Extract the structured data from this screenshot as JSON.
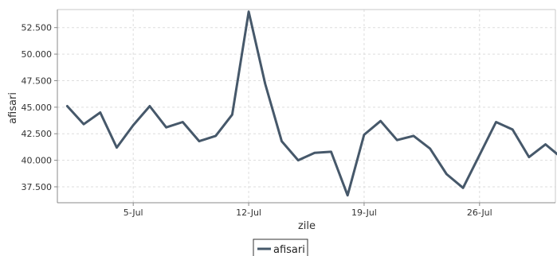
{
  "chart_data": {
    "type": "line",
    "title": "",
    "xlabel": "zile",
    "ylabel": "afisari",
    "x_start": "2013-07-01",
    "x_tick_labels": [
      "5-Jul",
      "12-Jul",
      "19-Jul",
      "26-Jul"
    ],
    "x_tick_days": [
      4,
      11,
      18,
      25
    ],
    "x_range_days": [
      -0.6,
      29.6
    ],
    "y_ticks": [
      37500,
      40000,
      42500,
      45000,
      47500,
      50000,
      52500
    ],
    "y_tick_labels": [
      "37.500",
      "40.000",
      "42.500",
      "45.000",
      "47.500",
      "50.000",
      "52.500"
    ],
    "ylim": [
      36000,
      54200
    ],
    "grid": true,
    "legend_position": "bottom-center",
    "series": [
      {
        "name": "afisari",
        "color": "#46586a",
        "x": [
          "1-Jul",
          "2-Jul",
          "3-Jul",
          "4-Jul",
          "5-Jul",
          "6-Jul",
          "7-Jul",
          "8-Jul",
          "9-Jul",
          "10-Jul",
          "11-Jul",
          "12-Jul",
          "13-Jul",
          "14-Jul",
          "15-Jul",
          "16-Jul",
          "17-Jul",
          "18-Jul",
          "19-Jul",
          "20-Jul",
          "21-Jul",
          "22-Jul",
          "23-Jul",
          "24-Jul",
          "25-Jul",
          "26-Jul",
          "27-Jul",
          "28-Jul",
          "29-Jul",
          "30-Jul",
          "31-Jul"
        ],
        "values": [
          45100,
          43400,
          44500,
          41200,
          43300,
          45100,
          43100,
          43600,
          41800,
          42300,
          44300,
          54000,
          47200,
          41800,
          40000,
          40700,
          40800,
          36700,
          42400,
          43700,
          41900,
          42300,
          41100,
          38700,
          37400,
          40500,
          43600,
          42900,
          40300,
          41500,
          40200
        ]
      }
    ]
  }
}
